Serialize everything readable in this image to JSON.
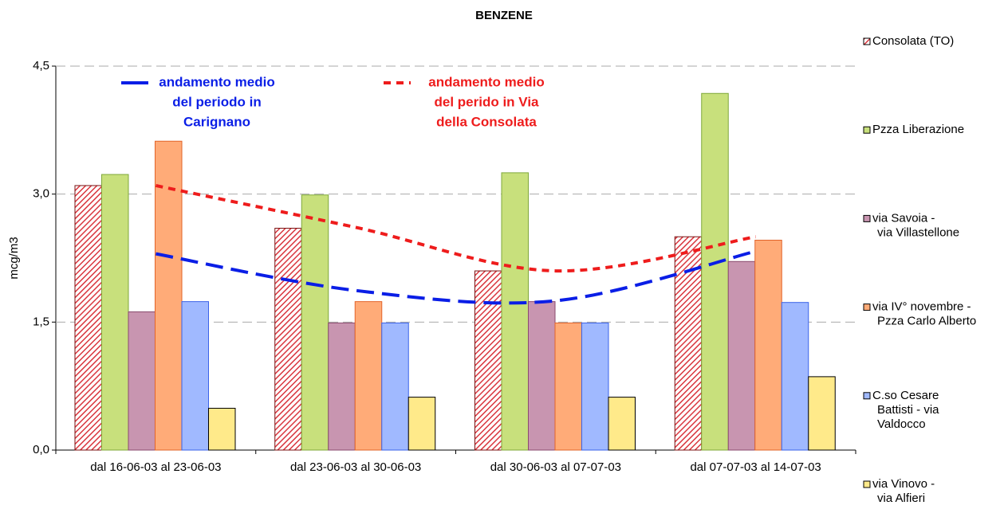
{
  "chart_data": {
    "type": "bar",
    "title": "BENZENE",
    "y_label": "mcg/m3",
    "categories": [
      "dal 16-06-03 al 23-06-03",
      "dal 23-06-03 al 30-06-03",
      "dal 30-06-03 al 07-07-03",
      "dal 07-07-03 al 14-07-03"
    ],
    "ylim": [
      0,
      4.5
    ],
    "yticks": [
      {
        "value": 0,
        "label": "0,0"
      },
      {
        "value": 1.5,
        "label": "1,5"
      },
      {
        "value": 3,
        "label": "3,0"
      },
      {
        "value": 4.5,
        "label": "4,5"
      }
    ],
    "grid": true,
    "series": [
      {
        "name": [
          "Consolata (TO)"
        ],
        "color": "#d9363e",
        "edge": "#7a1010",
        "pattern": "hatch",
        "values": [
          3.1,
          2.6,
          2.1,
          2.5
        ]
      },
      {
        "name": [
          "Pzza Liberazione"
        ],
        "color": "#c8e07c",
        "edge": "#7fa83a",
        "values": [
          3.23,
          2.99,
          3.25,
          4.18
        ]
      },
      {
        "name": [
          "via Savoia -",
          "via Villastellone"
        ],
        "color": "#c895b0",
        "edge": "#8a4a6e",
        "values": [
          1.62,
          1.49,
          1.74,
          2.21
        ]
      },
      {
        "name": [
          "via IV° novembre -",
          "Pzza Carlo Alberto"
        ],
        "color": "#ffab78",
        "edge": "#e2642a",
        "values": [
          3.62,
          1.74,
          1.49,
          2.46
        ]
      },
      {
        "name": [
          "C.so Cesare",
          "Battisti - via",
          "Valdocco"
        ],
        "color": "#a0b9ff",
        "edge": "#3a62e8",
        "values": [
          1.74,
          1.49,
          1.49,
          1.73
        ]
      },
      {
        "name": [
          "via Vinovo -",
          "via Alfieri"
        ],
        "color": "#ffea8a",
        "edge": "#000000",
        "values": [
          0.49,
          0.62,
          0.62,
          0.86
        ]
      }
    ],
    "trends": [
      {
        "name": [
          "andamento medio",
          "del periodo in",
          "Carignano"
        ],
        "color": "#0a1ee6",
        "dash": "long",
        "values": [
          2.3,
          1.87,
          1.75,
          2.33
        ]
      },
      {
        "name": [
          "andamento medio",
          "del perido in Via",
          "della Consolata"
        ],
        "color": "#ee1c1c",
        "dash": "short",
        "values": [
          3.1,
          2.61,
          2.1,
          2.5
        ]
      }
    ]
  }
}
